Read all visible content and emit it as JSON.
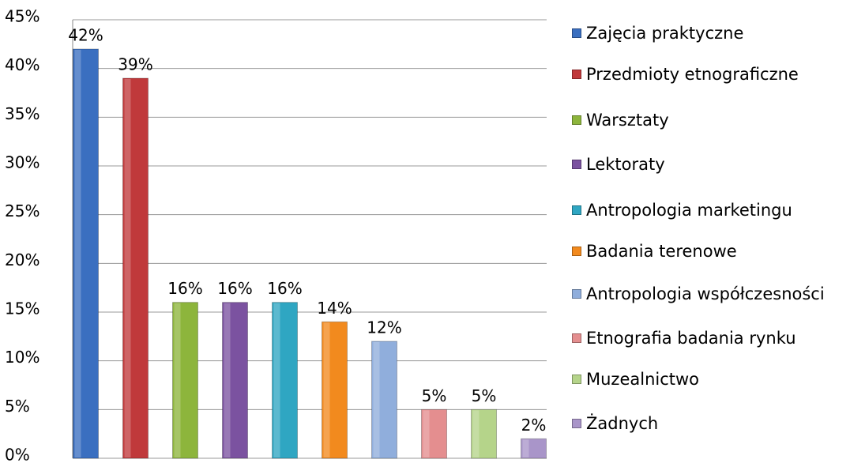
{
  "chart_data": {
    "type": "bar",
    "series": [
      {
        "name": "Zajęcia praktyczne",
        "color": "#3a6fc0",
        "values": [
          42
        ],
        "value_labels": [
          "42%"
        ]
      },
      {
        "name": "Przedmioty etnograficzne",
        "color": "#c0393b",
        "values": [
          39
        ],
        "value_labels": [
          "39%"
        ]
      },
      {
        "name": "Warsztaty",
        "color": "#8db53c",
        "values": [
          16
        ],
        "value_labels": [
          "16%"
        ]
      },
      {
        "name": "Lektoraty",
        "color": "#7b52a0",
        "values": [
          16
        ],
        "value_labels": [
          "16%"
        ]
      },
      {
        "name": "Antropologia marketingu",
        "color": "#2fa6c2",
        "values": [
          16
        ],
        "value_labels": [
          "16%"
        ]
      },
      {
        "name": "Badania terenowe",
        "color": "#f28a1e",
        "values": [
          14
        ],
        "value_labels": [
          "14%"
        ]
      },
      {
        "name": "Antropologia współczesności",
        "color": "#90aedc",
        "values": [
          12
        ],
        "value_labels": [
          "12%"
        ]
      },
      {
        "name": "Etnografia badania rynku",
        "color": "#e48e8f",
        "values": [
          5
        ],
        "value_labels": [
          "5%"
        ]
      },
      {
        "name": "Muzealnictwo",
        "color": "#b5d48a",
        "values": [
          5
        ],
        "value_labels": [
          "5%"
        ]
      },
      {
        "name": "Żadnych",
        "color": "#a995c9",
        "values": [
          2
        ],
        "value_labels": [
          "2%"
        ]
      }
    ],
    "ylim": [
      0,
      45
    ],
    "yticks": [
      {
        "value": 0,
        "label": "0%"
      },
      {
        "value": 5,
        "label": "5%"
      },
      {
        "value": 10,
        "label": "10%"
      },
      {
        "value": 15,
        "label": "15%"
      },
      {
        "value": 20,
        "label": "20%"
      },
      {
        "value": 25,
        "label": "25%"
      },
      {
        "value": 30,
        "label": "30%"
      },
      {
        "value": 35,
        "label": "35%"
      },
      {
        "value": 40,
        "label": "40%"
      },
      {
        "value": 45,
        "label": "45%"
      }
    ],
    "grid": true,
    "legend": "right"
  }
}
